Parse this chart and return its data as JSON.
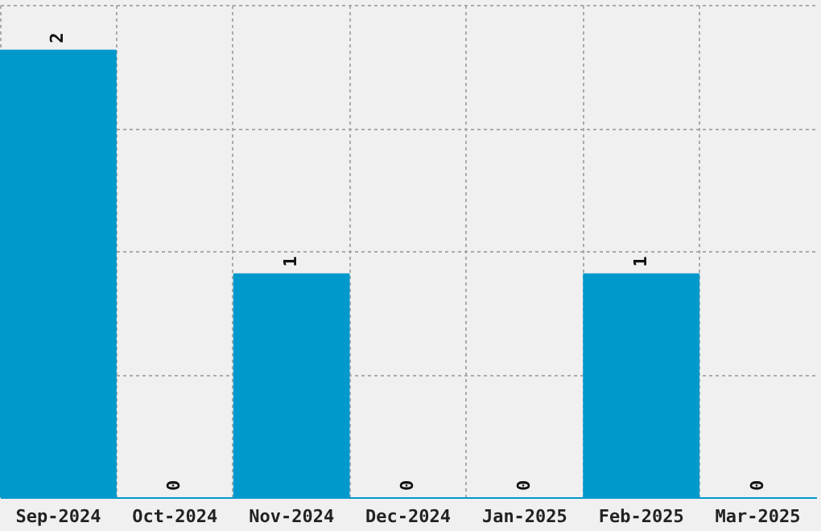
{
  "chart_data": {
    "type": "bar",
    "categories": [
      "Sep-2024",
      "Oct-2024",
      "Nov-2024",
      "Dec-2024",
      "Jan-2025",
      "Feb-2025",
      "Mar-2025"
    ],
    "values": [
      2,
      0,
      1,
      0,
      0,
      1,
      0
    ],
    "color": "#0099cc",
    "data_labels": true,
    "ylim": [
      0,
      2.2
    ],
    "yticks": [
      {
        "value": 0.55,
        "label": null
      },
      {
        "value": 1.1,
        "label": null
      },
      {
        "value": 1.65,
        "label": null
      },
      {
        "value": 2.2,
        "label": null
      }
    ],
    "grid": true,
    "tick_labels": "x"
  }
}
